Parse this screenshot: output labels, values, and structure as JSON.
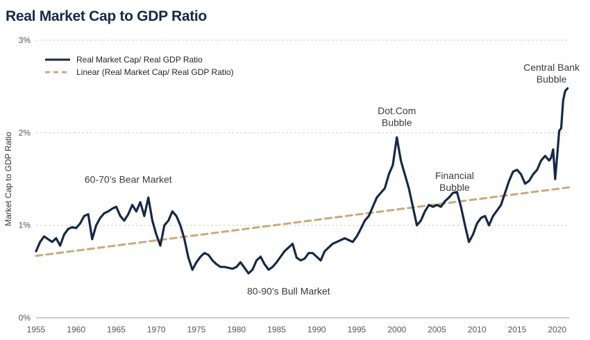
{
  "title": "Real Market Cap to GDP Ratio",
  "chart_data": {
    "type": "line",
    "title": "Real Market Cap to GDP Ratio",
    "xlabel": "",
    "ylabel": "Market Cap to GDP Ratio",
    "xlim": [
      1955,
      2021.5
    ],
    "ylim": [
      0,
      3
    ],
    "x_ticks": [
      "1955",
      "1960",
      "1965",
      "1970",
      "1975",
      "1980",
      "1985",
      "1990",
      "1995",
      "2000",
      "2005",
      "2010",
      "2015",
      "2020"
    ],
    "y_ticks": [
      "0%",
      "1%",
      "2%",
      "3%"
    ],
    "grid": "horizontal dashed",
    "legend_position": "top-left",
    "colors": {
      "ratio": "#14294a",
      "trend": "#c9aa7c",
      "title": "#14294a"
    },
    "series": [
      {
        "name": "Real Market Cap/ Real GDP Ratio",
        "style": "solid",
        "x": [
          1955.0,
          1955.5,
          1956.0,
          1956.5,
          1957.0,
          1957.5,
          1958.0,
          1958.5,
          1959.0,
          1959.5,
          1960.0,
          1960.5,
          1961.0,
          1961.5,
          1962.0,
          1962.5,
          1963.0,
          1963.5,
          1964.0,
          1964.5,
          1965.0,
          1965.5,
          1966.0,
          1966.5,
          1967.0,
          1967.5,
          1968.0,
          1968.5,
          1969.0,
          1969.5,
          1970.0,
          1970.5,
          1971.0,
          1971.5,
          1972.0,
          1972.5,
          1973.0,
          1973.5,
          1974.0,
          1974.5,
          1975.0,
          1975.5,
          1976.0,
          1976.5,
          1977.0,
          1977.5,
          1978.0,
          1978.5,
          1979.0,
          1979.5,
          1980.0,
          1980.5,
          1981.0,
          1981.5,
          1982.0,
          1982.5,
          1983.0,
          1983.5,
          1984.0,
          1984.5,
          1985.0,
          1985.5,
          1986.0,
          1986.5,
          1987.0,
          1987.5,
          1988.0,
          1988.5,
          1989.0,
          1989.5,
          1990.0,
          1990.5,
          1991.0,
          1991.5,
          1992.0,
          1992.5,
          1993.0,
          1993.5,
          1994.0,
          1994.5,
          1995.0,
          1995.5,
          1996.0,
          1996.5,
          1997.0,
          1997.5,
          1998.0,
          1998.5,
          1999.0,
          1999.5,
          2000.0,
          2000.5,
          2001.0,
          2001.5,
          2002.0,
          2002.5,
          2003.0,
          2003.5,
          2004.0,
          2004.5,
          2005.0,
          2005.5,
          2006.0,
          2006.5,
          2007.0,
          2007.5,
          2008.0,
          2008.5,
          2009.0,
          2009.5,
          2010.0,
          2010.5,
          2011.0,
          2011.5,
          2012.0,
          2012.5,
          2013.0,
          2013.5,
          2014.0,
          2014.5,
          2015.0,
          2015.5,
          2016.0,
          2016.5,
          2017.0,
          2017.5,
          2018.0,
          2018.5,
          2019.0,
          2019.25,
          2019.5,
          2019.75,
          2020.0,
          2020.25,
          2020.5,
          2020.75,
          2021.0,
          2021.3
        ],
        "y": [
          0.72,
          0.82,
          0.88,
          0.85,
          0.82,
          0.86,
          0.78,
          0.9,
          0.96,
          0.98,
          0.97,
          1.02,
          1.1,
          1.12,
          0.85,
          1.0,
          1.08,
          1.13,
          1.15,
          1.18,
          1.2,
          1.1,
          1.05,
          1.12,
          1.22,
          1.15,
          1.25,
          1.1,
          1.3,
          1.05,
          0.9,
          0.78,
          1.0,
          1.05,
          1.15,
          1.1,
          1.0,
          0.85,
          0.65,
          0.52,
          0.6,
          0.66,
          0.7,
          0.68,
          0.62,
          0.58,
          0.55,
          0.55,
          0.54,
          0.53,
          0.55,
          0.6,
          0.54,
          0.48,
          0.52,
          0.62,
          0.66,
          0.58,
          0.52,
          0.55,
          0.6,
          0.66,
          0.72,
          0.76,
          0.8,
          0.65,
          0.62,
          0.64,
          0.7,
          0.7,
          0.66,
          0.62,
          0.72,
          0.76,
          0.8,
          0.82,
          0.84,
          0.86,
          0.84,
          0.82,
          0.88,
          0.96,
          1.05,
          1.1,
          1.2,
          1.3,
          1.35,
          1.4,
          1.55,
          1.65,
          1.95,
          1.7,
          1.55,
          1.4,
          1.2,
          1.0,
          1.05,
          1.15,
          1.22,
          1.2,
          1.22,
          1.2,
          1.26,
          1.3,
          1.35,
          1.36,
          1.2,
          1.0,
          0.82,
          0.9,
          1.02,
          1.08,
          1.1,
          1.0,
          1.1,
          1.16,
          1.22,
          1.35,
          1.48,
          1.58,
          1.6,
          1.55,
          1.45,
          1.48,
          1.55,
          1.6,
          1.7,
          1.75,
          1.7,
          1.73,
          1.82,
          1.5,
          1.75,
          2.02,
          2.05,
          2.35,
          2.45,
          2.48
        ],
        "legend_label": "Real Market Cap/ Real GDP Ratio"
      },
      {
        "name": "Linear (Real Market Cap/ Real GDP Ratio)",
        "style": "dashed",
        "x": [
          1955.0,
          2021.5
        ],
        "y": [
          0.67,
          1.41
        ],
        "legend_label": "Linear (Real Market Cap/ Real GDP Ratio)"
      }
    ],
    "annotations": [
      {
        "lines": [
          "60-70’s Bear Market"
        ],
        "x": 1966.5,
        "y": 1.46
      },
      {
        "lines": [
          "80-90’s Bull Market"
        ],
        "x": 1986.5,
        "y": 0.25
      },
      {
        "lines": [
          "Dot.Com",
          "Bubble"
        ],
        "x": 2000.0,
        "y": 2.2
      },
      {
        "lines": [
          "Financial",
          "Bubble"
        ],
        "x": 2007.2,
        "y": 1.5
      },
      {
        "lines": [
          "Central Bank",
          "Bubble"
        ],
        "x": 2019.3,
        "y": 2.67
      }
    ]
  }
}
